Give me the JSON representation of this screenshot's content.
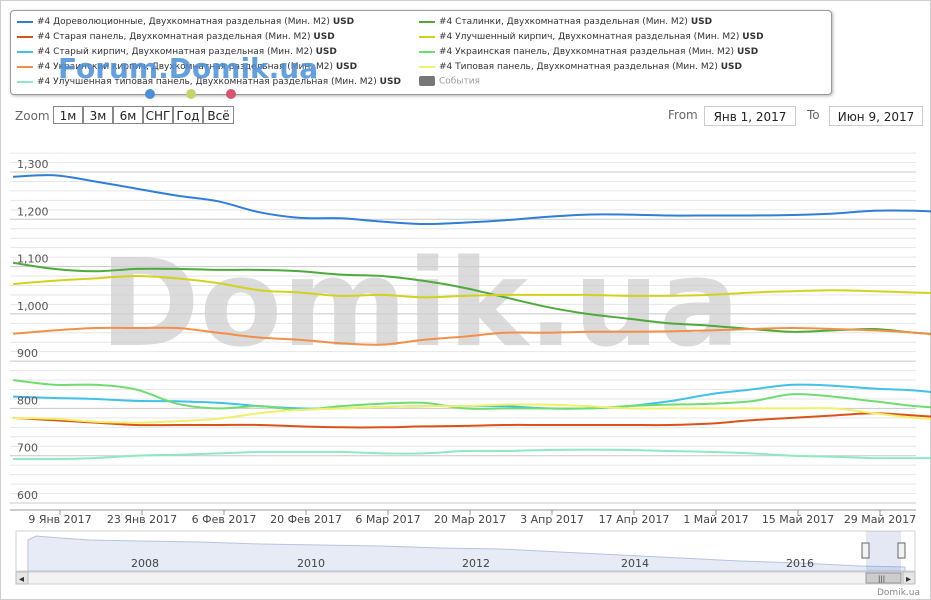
{
  "legend": {
    "items": [
      {
        "label": "#4 Дореволюционные, Двухкомнатная раздельная (Мин. M2)",
        "unit": "USD",
        "color": "#2f7ed8"
      },
      {
        "label": "#4 Сталинки, Двухкомнатная раздельная (Мин. M2)",
        "unit": "USD",
        "color": "#4eaa3b"
      },
      {
        "label": "#4 Старая панель, Двухкомнатная раздельная (Мин. M2)",
        "unit": "USD",
        "color": "#d95319"
      },
      {
        "label": "#4 Улучшенный кирпич, Двухкомнатная раздельная (Мин. M2)",
        "unit": "USD",
        "color": "#d2d21e"
      },
      {
        "label": "#4 Старый кирпич, Двухкомнатная раздельная (Мин. M2)",
        "unit": "USD",
        "color": "#3fc1e8"
      },
      {
        "label": "#4 Украинская панель, Двухкомнатная раздельная (Мин. M2)",
        "unit": "USD",
        "color": "#6fdc6f"
      },
      {
        "label": "#4 Украинский кирпич, Двухкомнатная раздельная (Мин. M2)",
        "unit": "USD",
        "color": "#f2904a"
      },
      {
        "label": "#4 Типовая панель, Двухкомнатная раздельная (Мин. M2)",
        "unit": "USD",
        "color": "#f0f06a"
      },
      {
        "label": "#4 Улучшенная типовая панель, Двухкомнатная раздельная (Мин. M2)",
        "unit": "USD",
        "color": "#8ee8c0"
      }
    ],
    "events_label": "События",
    "events_color": "#777777"
  },
  "watermark_top": "Forum.Domik.ua",
  "watermark_main": "Domik.ua",
  "credit": "Domik.ua",
  "zoom": {
    "label": "Zoom",
    "buttons": [
      "1м",
      "3м",
      "6м",
      "СНГ",
      "Год",
      "Всё"
    ]
  },
  "range": {
    "from_label": "From",
    "from_value": "Янв 1, 2017",
    "to_label": "To",
    "to_value": "Июн 9, 2017"
  },
  "chart_data": {
    "type": "line",
    "x_tick_labels": [
      "9 Янв 2017",
      "23 Янв 2017",
      "6 Фев 2017",
      "20 Фев 2017",
      "6 Мар 2017",
      "20 Мар 2017",
      "3 Апр 2017",
      "17 Апр 2017",
      "1 Май 2017",
      "15 Май 2017",
      "29 Май 2017"
    ],
    "y_tick_labels": [
      "600",
      "700",
      "800",
      "900",
      "1,000",
      "1,100",
      "1,200",
      "1,300"
    ],
    "ylim": [
      600,
      1300
    ],
    "x_days": [
      0,
      7,
      14,
      21,
      28,
      35,
      42,
      49,
      56,
      63,
      70,
      77,
      84,
      91,
      98,
      105,
      112,
      119,
      126,
      133,
      140,
      147,
      154,
      160
    ],
    "series": [
      {
        "name": "#4 Дореволюционные, Двухкомнатная раздельная (Мин. M2)",
        "color": "#2f7ed8",
        "values": [
          1290,
          1293,
          1280,
          1265,
          1250,
          1238,
          1215,
          1203,
          1202,
          1195,
          1190,
          1193,
          1198,
          1205,
          1210,
          1210,
          1208,
          1208,
          1208,
          1209,
          1212,
          1218,
          1218,
          1215
        ]
      },
      {
        "name": "#4 Сталинки, Двухкомнатная раздельная (Мин. M2)",
        "color": "#4eaa3b",
        "values": [
          1108,
          1095,
          1090,
          1095,
          1095,
          1093,
          1093,
          1090,
          1083,
          1080,
          1070,
          1055,
          1035,
          1015,
          1000,
          990,
          980,
          975,
          968,
          962,
          965,
          968,
          960,
          955
        ]
      },
      {
        "name": "#4 Старая панель, Двухкомнатная раздельная (Мин. M2)",
        "color": "#d95319",
        "values": [
          780,
          775,
          770,
          765,
          765,
          765,
          765,
          762,
          760,
          760,
          762,
          763,
          765,
          765,
          765,
          765,
          765,
          768,
          775,
          780,
          785,
          790,
          785,
          780
        ]
      },
      {
        "name": "#4 Улучшенный кирпич, Двухкомнатная раздельная (Мин. M2)",
        "color": "#d2d21e",
        "values": [
          1063,
          1070,
          1075,
          1080,
          1075,
          1065,
          1050,
          1045,
          1038,
          1040,
          1035,
          1038,
          1040,
          1040,
          1040,
          1038,
          1038,
          1040,
          1045,
          1048,
          1050,
          1048,
          1045,
          1043
        ]
      },
      {
        "name": "#4 Старый кирпич, Двухкомнатная раздельная (Мин. M2)",
        "color": "#3fc1e8",
        "values": [
          825,
          822,
          820,
          816,
          815,
          812,
          805,
          800,
          800,
          803,
          805,
          805,
          805,
          800,
          800,
          805,
          815,
          830,
          840,
          850,
          848,
          842,
          838,
          830
        ]
      },
      {
        "name": "#4 Украинская панель, Двухкомнатная раздельная (Мин. M2)",
        "color": "#6fdc6f",
        "values": [
          860,
          850,
          850,
          840,
          810,
          800,
          805,
          797,
          805,
          810,
          812,
          800,
          800,
          800,
          800,
          805,
          808,
          810,
          815,
          830,
          825,
          815,
          805,
          800
        ]
      },
      {
        "name": "#4 Украинский кирпич, Двухкомнатная раздельная (Мин. M2)",
        "color": "#f2904a",
        "values": [
          958,
          965,
          970,
          970,
          970,
          960,
          950,
          945,
          938,
          935,
          945,
          952,
          960,
          960,
          962,
          962,
          963,
          965,
          968,
          970,
          968,
          965,
          960,
          952
        ]
      },
      {
        "name": "#4 Типовая панель, Двухкомнатная раздельная (Мин. M2)",
        "color": "#f0f06a",
        "values": [
          780,
          778,
          772,
          770,
          773,
          778,
          790,
          797,
          800,
          803,
          805,
          805,
          808,
          808,
          805,
          800,
          800,
          800,
          800,
          800,
          800,
          790,
          780,
          775
        ]
      },
      {
        "name": "#4 Улучшенная типовая панель, Двухкомнатная раздельная (Мин. M2)",
        "color": "#8ee8c0",
        "values": [
          693,
          693,
          695,
          700,
          702,
          705,
          708,
          708,
          708,
          705,
          705,
          710,
          710,
          712,
          713,
          712,
          710,
          708,
          705,
          700,
          698,
          695,
          695,
          695
        ]
      }
    ]
  },
  "navigator": {
    "year_labels": [
      "2008",
      "2010",
      "2012",
      "2014",
      "2016"
    ]
  },
  "scrollbar": {
    "left_arrow": "◂",
    "right_arrow": "▸",
    "grip": "|||"
  }
}
